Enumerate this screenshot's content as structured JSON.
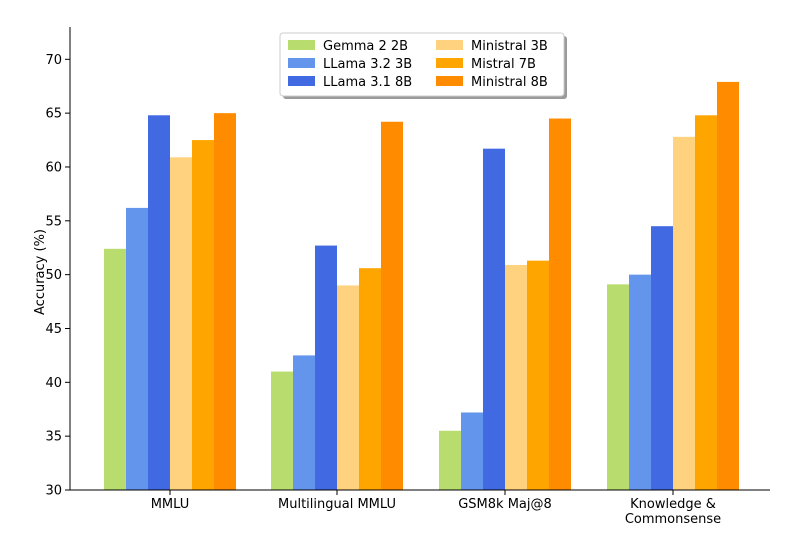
{
  "chart_data": {
    "type": "bar",
    "title": "",
    "xlabel": "",
    "ylabel": "Accuracy (%)",
    "ylim": [
      30,
      73
    ],
    "yticks": [
      30,
      35,
      40,
      45,
      50,
      55,
      60,
      65,
      70
    ],
    "grid": false,
    "legend_position": "top-center",
    "categories": [
      [
        "MMLU"
      ],
      [
        "Multilingual MMLU"
      ],
      [
        "GSM8k Maj@8"
      ],
      [
        "Knowledge &",
        "Commonsense"
      ]
    ],
    "series": [
      {
        "name": "Gemma 2 2B",
        "color": "#b8dc6e",
        "values": [
          52.4,
          41.0,
          35.5,
          49.1
        ]
      },
      {
        "name": "LLama 3.2 3B",
        "color": "#6495ed",
        "values": [
          56.2,
          42.5,
          37.2,
          50.0
        ]
      },
      {
        "name": "LLama 3.1 8B",
        "color": "#4169e1",
        "values": [
          64.8,
          52.7,
          61.7,
          54.5
        ]
      },
      {
        "name": "Ministral 3B",
        "color": "#ffd280",
        "values": [
          60.9,
          49.0,
          50.9,
          62.8
        ]
      },
      {
        "name": "Mistral 7B",
        "color": "#ffa500",
        "values": [
          62.5,
          50.6,
          51.3,
          64.8
        ]
      },
      {
        "name": "Ministral 8B",
        "color": "#ff8c00",
        "values": [
          65.0,
          64.2,
          64.5,
          67.9
        ]
      }
    ]
  }
}
